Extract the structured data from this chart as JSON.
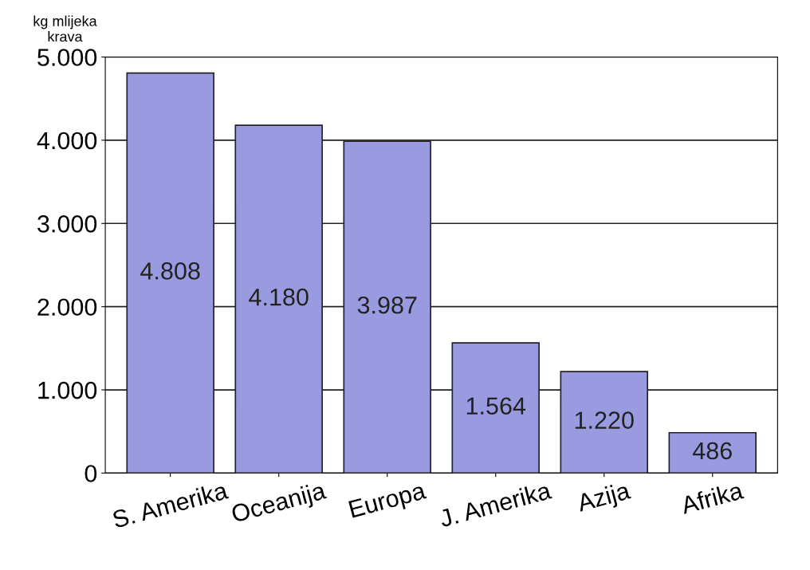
{
  "chart_data": {
    "type": "bar",
    "ylabel": "kg mlijeka\nkrava",
    "categories": [
      "S. Amerika",
      "Oceanija",
      "Europa",
      "J. Amerika",
      "Azija",
      "Afrika"
    ],
    "values": [
      4808,
      4180,
      3987,
      1564,
      1220,
      486
    ],
    "value_labels": [
      "4.808",
      "4.180",
      "3.987",
      "1.564",
      "1.220",
      "486"
    ],
    "color": "#9a9ae0",
    "ylim": [
      0,
      5000
    ],
    "yticks": [
      {
        "value": 0,
        "label": "0"
      },
      {
        "value": 1000,
        "label": "1.000"
      },
      {
        "value": 2000,
        "label": "2.000"
      },
      {
        "value": 3000,
        "label": "3.000"
      },
      {
        "value": 4000,
        "label": "4.000"
      },
      {
        "value": 5000,
        "label": "5.000"
      }
    ],
    "grid": "y"
  }
}
